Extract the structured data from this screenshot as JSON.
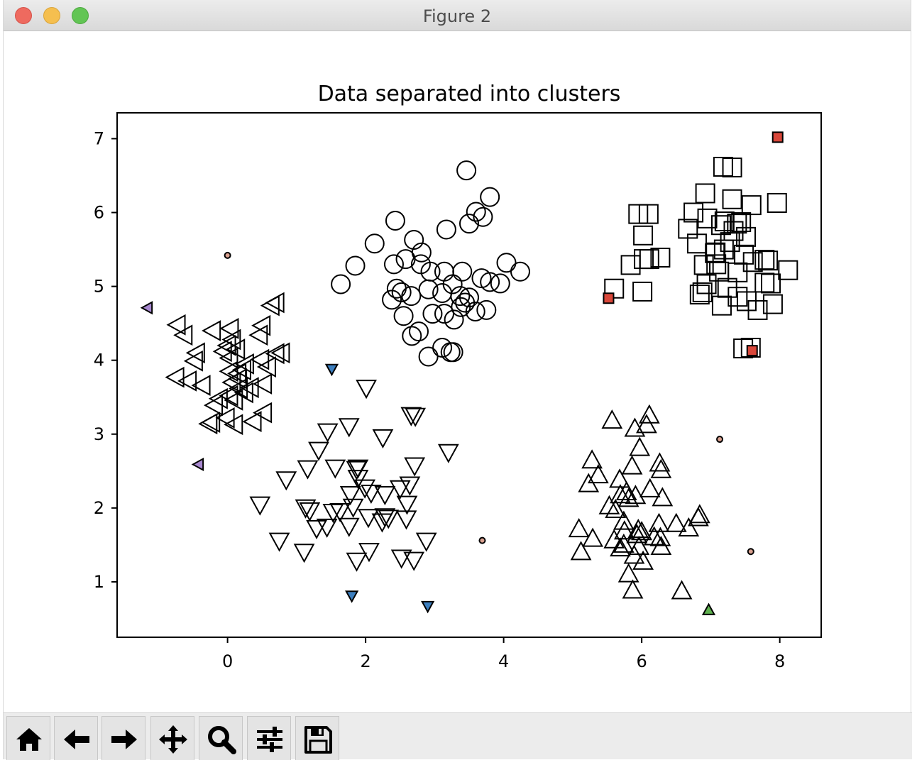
{
  "window": {
    "title": "Figure 2"
  },
  "toolbar": {
    "buttons": [
      {
        "icon": "home-icon"
      },
      {
        "icon": "back-arrow-icon"
      },
      {
        "icon": "forward-arrow-icon"
      },
      {
        "icon": "pan-icon"
      },
      {
        "icon": "zoom-icon"
      },
      {
        "icon": "subplots-config-icon"
      },
      {
        "icon": "save-icon"
      }
    ]
  },
  "chart_data": {
    "type": "scatter",
    "title": "Data separated into clusters",
    "xlabel": "",
    "ylabel": "",
    "xlim": [
      -1.6,
      8.6
    ],
    "ylim": [
      0.25,
      7.35
    ],
    "xticks": [
      0,
      2,
      4,
      6,
      8
    ],
    "yticks": [
      1,
      2,
      3,
      4,
      5,
      6,
      7
    ],
    "grid": false,
    "colors": {
      "frame": "#000000",
      "outlier_square": "#d9473a",
      "outlier_triangle_left": "#a787cf",
      "outlier_triangle_down": "#3c7fbf",
      "outlier_triangle_up": "#5fb14f",
      "outlier_circle": "#d9a08f"
    },
    "series": [
      {
        "marker": "circle",
        "points": [
          [
            3.46,
            6.57
          ],
          [
            3.8,
            6.21
          ],
          [
            3.6,
            6.01
          ],
          [
            3.7,
            5.94
          ],
          [
            2.43,
            5.89
          ],
          [
            3.5,
            5.85
          ],
          [
            3.17,
            5.77
          ],
          [
            2.7,
            5.63
          ],
          [
            2.13,
            5.58
          ],
          [
            2.81,
            5.46
          ],
          [
            2.58,
            5.37
          ],
          [
            2.41,
            5.3
          ],
          [
            1.85,
            5.28
          ],
          [
            2.8,
            5.3
          ],
          [
            4.04,
            5.32
          ],
          [
            2.94,
            5.2
          ],
          [
            3.14,
            5.2
          ],
          [
            4.24,
            5.2
          ],
          [
            3.4,
            5.2
          ],
          [
            3.68,
            5.11
          ],
          [
            3.8,
            5.06
          ],
          [
            3.95,
            5.04
          ],
          [
            1.64,
            5.03
          ],
          [
            3.26,
            5.03
          ],
          [
            2.91,
            4.96
          ],
          [
            3.11,
            4.91
          ],
          [
            3.37,
            4.87
          ],
          [
            2.45,
            4.97
          ],
          [
            2.52,
            4.92
          ],
          [
            2.66,
            4.87
          ],
          [
            3.5,
            4.85
          ],
          [
            2.38,
            4.82
          ],
          [
            3.44,
            4.78
          ],
          [
            3.38,
            4.72
          ],
          [
            3.59,
            4.66
          ],
          [
            2.97,
            4.63
          ],
          [
            3.14,
            4.63
          ],
          [
            3.75,
            4.68
          ],
          [
            3.28,
            4.55
          ],
          [
            2.55,
            4.6
          ],
          [
            2.77,
            4.39
          ],
          [
            2.67,
            4.33
          ],
          [
            3.11,
            4.17
          ],
          [
            3.27,
            4.11
          ],
          [
            3.23,
            4.11
          ],
          [
            2.91,
            4.05
          ]
        ]
      },
      {
        "marker": "square",
        "points": [
          [
            7.18,
            6.62
          ],
          [
            7.31,
            6.61
          ],
          [
            6.92,
            6.26
          ],
          [
            7.31,
            6.18
          ],
          [
            7.59,
            6.1
          ],
          [
            7.96,
            6.13
          ],
          [
            5.95,
            5.98
          ],
          [
            6.1,
            5.98
          ],
          [
            6.75,
            6.0
          ],
          [
            6.95,
            5.92
          ],
          [
            7.2,
            5.88
          ],
          [
            7.44,
            5.87
          ],
          [
            7.15,
            5.83
          ],
          [
            7.38,
            5.85
          ],
          [
            6.67,
            5.78
          ],
          [
            7.33,
            5.75
          ],
          [
            6.02,
            5.69
          ],
          [
            7.51,
            5.67
          ],
          [
            7.28,
            5.6
          ],
          [
            6.8,
            5.58
          ],
          [
            7.19,
            5.5
          ],
          [
            7.07,
            5.46
          ],
          [
            7.06,
            5.45
          ],
          [
            7.48,
            5.43
          ],
          [
            6.03,
            5.37
          ],
          [
            6.27,
            5.39
          ],
          [
            6.11,
            5.37
          ],
          [
            7.83,
            5.35
          ],
          [
            7.78,
            5.36
          ],
          [
            5.84,
            5.29
          ],
          [
            7.61,
            5.33
          ],
          [
            6.9,
            5.29
          ],
          [
            7.08,
            5.3
          ],
          [
            8.12,
            5.22
          ],
          [
            7.12,
            5.2
          ],
          [
            7.39,
            5.19
          ],
          [
            6.94,
            5.03
          ],
          [
            7.78,
            5.05
          ],
          [
            7.87,
            5.04
          ],
          [
            7.24,
            4.98
          ],
          [
            5.6,
            4.97
          ],
          [
            6.01,
            4.93
          ],
          [
            6.88,
            4.92
          ],
          [
            6.84,
            4.89
          ],
          [
            7.39,
            4.86
          ],
          [
            7.52,
            4.8
          ],
          [
            7.9,
            4.76
          ],
          [
            7.16,
            4.74
          ],
          [
            7.68,
            4.68
          ],
          [
            7.47,
            4.16
          ],
          [
            7.58,
            4.17
          ]
        ]
      },
      {
        "marker": "triangle-left",
        "points": [
          [
            0.72,
            4.78
          ],
          [
            0.65,
            4.74
          ],
          [
            -0.71,
            4.48
          ],
          [
            0.52,
            4.47
          ],
          [
            0.06,
            4.43
          ],
          [
            -0.2,
            4.4
          ],
          [
            0.48,
            4.34
          ],
          [
            0.09,
            4.28
          ],
          [
            -0.61,
            4.34
          ],
          [
            0.02,
            4.2
          ],
          [
            0.15,
            4.15
          ],
          [
            -0.04,
            4.12
          ],
          [
            -0.43,
            4.1
          ],
          [
            0.8,
            4.1
          ],
          [
            0.72,
            4.09
          ],
          [
            0.05,
            4.03
          ],
          [
            0.28,
            3.95
          ],
          [
            0.5,
            4.01
          ],
          [
            -0.46,
            3.99
          ],
          [
            0.24,
            3.87
          ],
          [
            0.6,
            3.91
          ],
          [
            0.05,
            3.85
          ],
          [
            0.17,
            3.82
          ],
          [
            -0.73,
            3.77
          ],
          [
            -0.55,
            3.72
          ],
          [
            0.18,
            3.75
          ],
          [
            0.09,
            3.7
          ],
          [
            0.54,
            3.68
          ],
          [
            -0.35,
            3.66
          ],
          [
            0.19,
            3.62
          ],
          [
            0.35,
            3.63
          ],
          [
            0.27,
            3.56
          ],
          [
            0.05,
            3.52
          ],
          [
            -0.1,
            3.48
          ],
          [
            0.12,
            3.46
          ],
          [
            -0.17,
            3.39
          ],
          [
            0.54,
            3.29
          ],
          [
            0.0,
            3.22
          ],
          [
            -0.21,
            3.16
          ],
          [
            0.39,
            3.17
          ],
          [
            0.12,
            3.13
          ],
          [
            -0.25,
            3.14
          ]
        ]
      },
      {
        "marker": "triangle-down",
        "points": [
          [
            2.01,
            3.64
          ],
          [
            2.66,
            3.27
          ],
          [
            2.72,
            3.26
          ],
          [
            1.76,
            3.12
          ],
          [
            1.45,
            3.05
          ],
          [
            2.25,
            2.97
          ],
          [
            3.2,
            2.77
          ],
          [
            1.32,
            2.8
          ],
          [
            1.16,
            2.55
          ],
          [
            1.56,
            2.56
          ],
          [
            0.85,
            2.4
          ],
          [
            1.89,
            2.56
          ],
          [
            1.87,
            2.54
          ],
          [
            2.71,
            2.59
          ],
          [
            1.89,
            2.42
          ],
          [
            2.64,
            2.33
          ],
          [
            2.5,
            2.28
          ],
          [
            1.99,
            2.29
          ],
          [
            1.78,
            2.2
          ],
          [
            2.28,
            2.2
          ],
          [
            2.08,
            2.22
          ],
          [
            2.6,
            2.07
          ],
          [
            0.47,
            2.06
          ],
          [
            1.82,
            2.03
          ],
          [
            1.13,
            2.02
          ],
          [
            1.19,
            1.98
          ],
          [
            1.53,
            1.96
          ],
          [
            1.63,
            1.97
          ],
          [
            2.28,
            1.9
          ],
          [
            2.04,
            1.89
          ],
          [
            2.33,
            1.88
          ],
          [
            2.59,
            1.87
          ],
          [
            2.24,
            1.83
          ],
          [
            1.76,
            1.77
          ],
          [
            1.44,
            1.76
          ],
          [
            1.29,
            1.74
          ],
          [
            0.75,
            1.57
          ],
          [
            2.88,
            1.57
          ],
          [
            1.11,
            1.42
          ],
          [
            2.05,
            1.43
          ],
          [
            2.52,
            1.34
          ],
          [
            2.7,
            1.31
          ],
          [
            1.87,
            1.3
          ]
        ]
      },
      {
        "marker": "triangle-up",
        "points": [
          [
            6.11,
            3.24
          ],
          [
            5.57,
            3.17
          ],
          [
            6.07,
            3.11
          ],
          [
            5.9,
            3.06
          ],
          [
            5.97,
            2.8
          ],
          [
            5.28,
            2.63
          ],
          [
            6.26,
            2.59
          ],
          [
            5.86,
            2.55
          ],
          [
            6.28,
            2.5
          ],
          [
            5.37,
            2.43
          ],
          [
            5.68,
            2.37
          ],
          [
            5.23,
            2.31
          ],
          [
            6.12,
            2.24
          ],
          [
            5.78,
            2.2
          ],
          [
            5.69,
            2.16
          ],
          [
            5.91,
            2.15
          ],
          [
            5.81,
            2.11
          ],
          [
            6.3,
            2.12
          ],
          [
            5.53,
            2.01
          ],
          [
            5.62,
            1.96
          ],
          [
            6.84,
            1.89
          ],
          [
            6.82,
            1.85
          ],
          [
            5.74,
            1.8
          ],
          [
            6.25,
            1.77
          ],
          [
            6.5,
            1.77
          ],
          [
            6.68,
            1.71
          ],
          [
            5.09,
            1.7
          ],
          [
            5.95,
            1.69
          ],
          [
            5.75,
            1.67
          ],
          [
            6.0,
            1.66
          ],
          [
            5.93,
            1.62
          ],
          [
            6.18,
            1.59
          ],
          [
            5.29,
            1.57
          ],
          [
            6.27,
            1.58
          ],
          [
            5.6,
            1.55
          ],
          [
            5.74,
            1.49
          ],
          [
            5.96,
            1.46
          ],
          [
            5.69,
            1.44
          ],
          [
            6.28,
            1.46
          ],
          [
            5.12,
            1.39
          ],
          [
            5.89,
            1.34
          ],
          [
            6.02,
            1.26
          ],
          [
            5.81,
            1.09
          ],
          [
            5.87,
            0.87
          ],
          [
            6.58,
            0.86
          ]
        ]
      },
      {
        "marker": "square-small",
        "color": "#d9473a",
        "points": [
          [
            7.97,
            7.02
          ],
          [
            5.52,
            4.84
          ],
          [
            7.6,
            4.13
          ]
        ]
      },
      {
        "marker": "triangle-left-small",
        "color": "#a787cf",
        "points": [
          [
            -1.15,
            4.71
          ],
          [
            -0.41,
            2.59
          ]
        ]
      },
      {
        "marker": "triangle-down-small",
        "color": "#3c7fbf",
        "points": [
          [
            1.51,
            3.89
          ],
          [
            1.8,
            0.82
          ],
          [
            2.9,
            0.68
          ]
        ]
      },
      {
        "marker": "triangle-up-small",
        "color": "#5fb14f",
        "points": [
          [
            6.97,
            0.61
          ]
        ]
      },
      {
        "marker": "dot-small",
        "color": "#d9a08f",
        "points": [
          [
            0.0,
            5.42
          ],
          [
            3.69,
            1.56
          ],
          [
            7.13,
            2.93
          ],
          [
            7.58,
            1.41
          ]
        ]
      }
    ]
  }
}
